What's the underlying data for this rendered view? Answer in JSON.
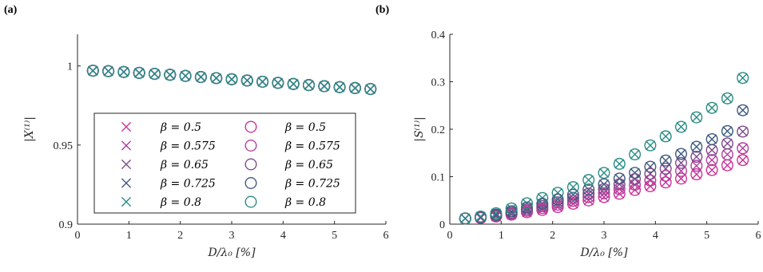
{
  "chart_data": [
    {
      "panel": "(a)",
      "type": "scatter",
      "title": "",
      "xlabel": "D/λ₀   [%]",
      "ylabel": "|X⁽¹⁾|",
      "xlim": [
        0,
        6
      ],
      "ylim": [
        0.9,
        1.02
      ],
      "xticks": [
        "0",
        "1",
        "2",
        "3",
        "4",
        "5",
        "6"
      ],
      "yticks": [
        "0.9",
        "0.95",
        "1"
      ],
      "x": [
        0.3,
        0.6,
        0.9,
        1.2,
        1.5,
        1.8,
        2.1,
        2.4,
        2.7,
        3.0,
        3.3,
        3.6,
        3.9,
        4.2,
        4.5,
        4.8,
        5.1,
        5.4,
        5.7
      ],
      "series": [
        {
          "name": "β = 0.5",
          "marker": "x",
          "color": "#cc3399",
          "values": [
            0.997,
            0.9967,
            0.9962,
            0.9956,
            0.995,
            0.9944,
            0.9937,
            0.993,
            0.9923,
            0.9916,
            0.9908,
            0.99,
            0.9893,
            0.9886,
            0.9879,
            0.9872,
            0.9866,
            0.986,
            0.9854
          ]
        },
        {
          "name": "β = 0.575",
          "marker": "x",
          "color": "#b2409e",
          "values": [
            0.997,
            0.9967,
            0.9962,
            0.9956,
            0.995,
            0.9944,
            0.9937,
            0.993,
            0.9923,
            0.9916,
            0.9908,
            0.99,
            0.9893,
            0.9886,
            0.9879,
            0.9872,
            0.9866,
            0.986,
            0.9854
          ]
        },
        {
          "name": "β = 0.65",
          "marker": "x",
          "color": "#7f4c8c",
          "values": [
            0.997,
            0.9967,
            0.9962,
            0.9956,
            0.995,
            0.9944,
            0.9937,
            0.993,
            0.9923,
            0.9916,
            0.9908,
            0.99,
            0.9893,
            0.9886,
            0.9879,
            0.9872,
            0.9866,
            0.986,
            0.9854
          ]
        },
        {
          "name": "β = 0.725",
          "marker": "x",
          "color": "#3f5a7f",
          "values": [
            0.997,
            0.9967,
            0.9962,
            0.9956,
            0.995,
            0.9944,
            0.9937,
            0.993,
            0.9923,
            0.9916,
            0.9908,
            0.99,
            0.9893,
            0.9886,
            0.9879,
            0.9872,
            0.9866,
            0.986,
            0.9854
          ]
        },
        {
          "name": "β = 0.8",
          "marker": "x",
          "color": "#2a8c85",
          "values": [
            0.997,
            0.9967,
            0.9962,
            0.9956,
            0.995,
            0.9944,
            0.9937,
            0.993,
            0.9923,
            0.9916,
            0.9908,
            0.99,
            0.9893,
            0.9886,
            0.9879,
            0.9872,
            0.9866,
            0.986,
            0.9854
          ]
        },
        {
          "name": "β = 0.5",
          "marker": "o",
          "color": "#cc3399",
          "values": [
            0.997,
            0.9967,
            0.9962,
            0.9956,
            0.995,
            0.9944,
            0.9937,
            0.993,
            0.9923,
            0.9916,
            0.9908,
            0.99,
            0.9893,
            0.9886,
            0.9879,
            0.9872,
            0.9866,
            0.986,
            0.9854
          ]
        },
        {
          "name": "β = 0.575",
          "marker": "o",
          "color": "#b2409e",
          "values": [
            0.997,
            0.9967,
            0.9962,
            0.9956,
            0.995,
            0.9944,
            0.9937,
            0.993,
            0.9923,
            0.9916,
            0.9908,
            0.99,
            0.9893,
            0.9886,
            0.9879,
            0.9872,
            0.9866,
            0.986,
            0.9854
          ]
        },
        {
          "name": "β = 0.65",
          "marker": "o",
          "color": "#7f4c8c",
          "values": [
            0.997,
            0.9967,
            0.9962,
            0.9956,
            0.995,
            0.9944,
            0.9937,
            0.993,
            0.9923,
            0.9916,
            0.9908,
            0.99,
            0.9893,
            0.9886,
            0.9879,
            0.9872,
            0.9866,
            0.986,
            0.9854
          ]
        },
        {
          "name": "β = 0.725",
          "marker": "o",
          "color": "#3f5a7f",
          "values": [
            0.997,
            0.9967,
            0.9962,
            0.9956,
            0.995,
            0.9944,
            0.9937,
            0.993,
            0.9923,
            0.9916,
            0.9908,
            0.99,
            0.9893,
            0.9886,
            0.9879,
            0.9872,
            0.9866,
            0.986,
            0.9854
          ]
        },
        {
          "name": "β = 0.8",
          "marker": "o",
          "color": "#2a8c85",
          "values": [
            0.997,
            0.9967,
            0.9962,
            0.9956,
            0.995,
            0.9944,
            0.9937,
            0.993,
            0.9923,
            0.9916,
            0.9908,
            0.99,
            0.9893,
            0.9886,
            0.9879,
            0.9872,
            0.9866,
            0.986,
            0.9854
          ]
        }
      ],
      "legend": {
        "placement": "lower-left",
        "columns": 2,
        "entries": [
          {
            "label": "β = 0.5",
            "marker": "x",
            "color": "#cc3399"
          },
          {
            "label": "β = 0.575",
            "marker": "x",
            "color": "#b2409e"
          },
          {
            "label": "β = 0.65",
            "marker": "x",
            "color": "#7f4c8c"
          },
          {
            "label": "β = 0.725",
            "marker": "x",
            "color": "#3f5a7f"
          },
          {
            "label": "β = 0.8",
            "marker": "x",
            "color": "#2a8c85"
          },
          {
            "label": "β = 0.5",
            "marker": "o",
            "color": "#cc3399"
          },
          {
            "label": "β = 0.575",
            "marker": "o",
            "color": "#b2409e"
          },
          {
            "label": "β = 0.65",
            "marker": "o",
            "color": "#7f4c8c"
          },
          {
            "label": "β = 0.725",
            "marker": "o",
            "color": "#3f5a7f"
          },
          {
            "label": "β = 0.8",
            "marker": "o",
            "color": "#2a8c85"
          }
        ]
      },
      "grid": false
    },
    {
      "panel": "(b)",
      "type": "scatter",
      "title": "",
      "xlabel": "D/λ₀   [%]",
      "ylabel": "|S⁽¹⁾|",
      "xlim": [
        0,
        6
      ],
      "ylim": [
        0,
        0.4
      ],
      "xticks": [
        "0",
        "1",
        "2",
        "3",
        "4",
        "5",
        "6"
      ],
      "yticks": [
        "0",
        "0.1",
        "0.2",
        "0.3",
        "0.4"
      ],
      "x": [
        0.3,
        0.6,
        0.9,
        1.2,
        1.5,
        1.8,
        2.1,
        2.4,
        2.7,
        3.0,
        3.3,
        3.6,
        3.9,
        4.2,
        4.5,
        4.8,
        5.1,
        5.4,
        5.7
      ],
      "series": [
        {
          "name": "β = 0.5",
          "marker": "x",
          "color": "#cc3399",
          "values": [
            0.012,
            0.013,
            0.016,
            0.02,
            0.025,
            0.03,
            0.036,
            0.043,
            0.05,
            0.057,
            0.064,
            0.072,
            0.08,
            0.088,
            0.096,
            0.105,
            0.114,
            0.124,
            0.135
          ]
        },
        {
          "name": "β = 0.575",
          "marker": "x",
          "color": "#b2409e",
          "values": [
            0.012,
            0.014,
            0.017,
            0.022,
            0.028,
            0.034,
            0.041,
            0.049,
            0.057,
            0.065,
            0.074,
            0.083,
            0.092,
            0.102,
            0.112,
            0.123,
            0.135,
            0.147,
            0.16
          ]
        },
        {
          "name": "β = 0.65",
          "marker": "x",
          "color": "#7f4c8c",
          "values": [
            0.012,
            0.014,
            0.018,
            0.024,
            0.031,
            0.038,
            0.046,
            0.055,
            0.064,
            0.074,
            0.084,
            0.095,
            0.106,
            0.117,
            0.129,
            0.142,
            0.156,
            0.17,
            0.195
          ]
        },
        {
          "name": "β = 0.725",
          "marker": "x",
          "color": "#3f5a7f",
          "values": [
            0.012,
            0.015,
            0.02,
            0.027,
            0.035,
            0.043,
            0.052,
            0.062,
            0.073,
            0.084,
            0.096,
            0.108,
            0.121,
            0.134,
            0.148,
            0.163,
            0.179,
            0.196,
            0.24
          ]
        },
        {
          "name": "β = 0.8",
          "marker": "x",
          "color": "#2a8c85",
          "values": [
            0.012,
            0.016,
            0.023,
            0.033,
            0.044,
            0.055,
            0.066,
            0.078,
            0.093,
            0.108,
            0.127,
            0.147,
            0.166,
            0.185,
            0.205,
            0.225,
            0.245,
            0.265,
            0.308
          ]
        },
        {
          "name": "β = 0.5",
          "marker": "o",
          "color": "#cc3399",
          "values": [
            0.012,
            0.013,
            0.016,
            0.02,
            0.025,
            0.03,
            0.036,
            0.043,
            0.05,
            0.057,
            0.064,
            0.072,
            0.08,
            0.088,
            0.096,
            0.105,
            0.114,
            0.124,
            0.135
          ]
        },
        {
          "name": "β = 0.575",
          "marker": "o",
          "color": "#b2409e",
          "values": [
            0.012,
            0.014,
            0.017,
            0.022,
            0.028,
            0.034,
            0.041,
            0.049,
            0.057,
            0.065,
            0.074,
            0.083,
            0.092,
            0.102,
            0.112,
            0.123,
            0.135,
            0.147,
            0.16
          ]
        },
        {
          "name": "β = 0.65",
          "marker": "o",
          "color": "#7f4c8c",
          "values": [
            0.012,
            0.014,
            0.018,
            0.024,
            0.031,
            0.038,
            0.046,
            0.055,
            0.064,
            0.074,
            0.084,
            0.095,
            0.106,
            0.117,
            0.129,
            0.142,
            0.156,
            0.17,
            0.195
          ]
        },
        {
          "name": "β = 0.725",
          "marker": "o",
          "color": "#3f5a7f",
          "values": [
            0.012,
            0.015,
            0.02,
            0.027,
            0.035,
            0.043,
            0.052,
            0.062,
            0.073,
            0.084,
            0.096,
            0.108,
            0.121,
            0.134,
            0.148,
            0.163,
            0.179,
            0.196,
            0.24
          ]
        },
        {
          "name": "β = 0.8",
          "marker": "o",
          "color": "#2a8c85",
          "values": [
            0.012,
            0.016,
            0.023,
            0.033,
            0.044,
            0.055,
            0.066,
            0.078,
            0.093,
            0.108,
            0.127,
            0.147,
            0.166,
            0.185,
            0.205,
            0.225,
            0.245,
            0.265,
            0.308
          ]
        }
      ],
      "grid": false
    }
  ]
}
